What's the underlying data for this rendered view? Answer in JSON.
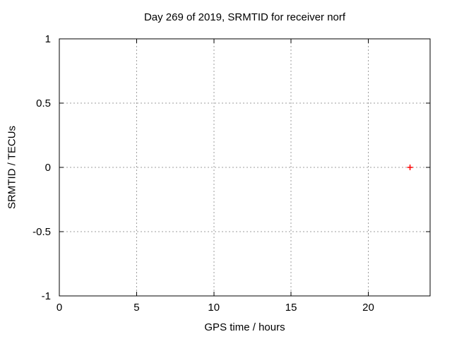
{
  "chart_data": {
    "type": "scatter",
    "title": "Day 269 of 2019, SRMTID for receiver norf",
    "xlabel": "GPS time / hours",
    "ylabel": "SRMTID / TECUs",
    "xlim": [
      0,
      24
    ],
    "ylim": [
      -1,
      1
    ],
    "xticks": [
      0,
      5,
      10,
      15,
      20
    ],
    "yticks": [
      -1,
      -0.5,
      0,
      0.5,
      1
    ],
    "grid": true,
    "legend_position": "none",
    "series": [
      {
        "name": "SRMTID",
        "marker": "plus",
        "color": "#ff0000",
        "points": [
          [
            22.7,
            0.0
          ]
        ]
      }
    ],
    "colors": {
      "background": "#ffffff",
      "border": "#000000",
      "grid": "#9e9e9e",
      "text": "#000000"
    }
  }
}
